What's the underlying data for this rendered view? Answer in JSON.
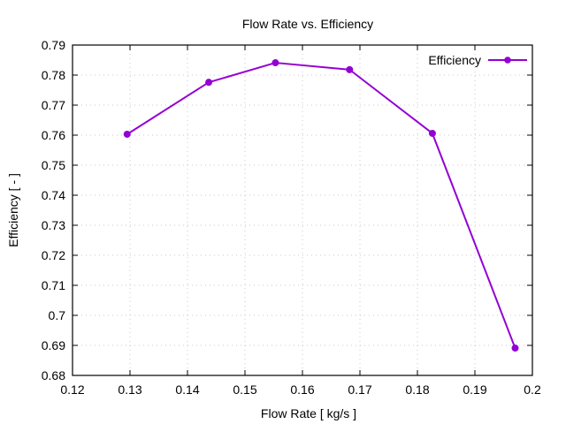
{
  "chart_data": {
    "type": "line",
    "title": "Flow Rate  vs. Efficiency",
    "xlabel": "Flow Rate [ kg/s ]",
    "ylabel": "Efficiency [ - ]",
    "xlim": [
      0.12,
      0.2
    ],
    "ylim": [
      0.68,
      0.79
    ],
    "xticks": [
      0.12,
      0.13,
      0.14,
      0.15,
      0.16,
      0.17,
      0.18,
      0.19,
      0.2
    ],
    "xtick_labels": [
      "0.12",
      "0.13",
      "0.14",
      "0.15",
      "0.16",
      "0.17",
      "0.18",
      "0.19",
      "0.2"
    ],
    "yticks": [
      0.68,
      0.69,
      0.7,
      0.71,
      0.72,
      0.73,
      0.74,
      0.75,
      0.76,
      0.77,
      0.78,
      0.79
    ],
    "ytick_labels": [
      "0.68",
      "0.69",
      "0.7",
      "0.71",
      "0.72",
      "0.73",
      "0.74",
      "0.75",
      "0.76",
      "0.77",
      "0.78",
      "0.79"
    ],
    "grid": true,
    "legend_position": "top-right",
    "series": [
      {
        "name": "Efficiency",
        "color": "#9400d3",
        "marker": "circle",
        "x": [
          0.1295,
          0.1437,
          0.1553,
          0.1682,
          0.1826,
          0.197
        ],
        "y": [
          0.7603,
          0.7776,
          0.7841,
          0.7818,
          0.7606,
          0.6891
        ]
      }
    ]
  }
}
